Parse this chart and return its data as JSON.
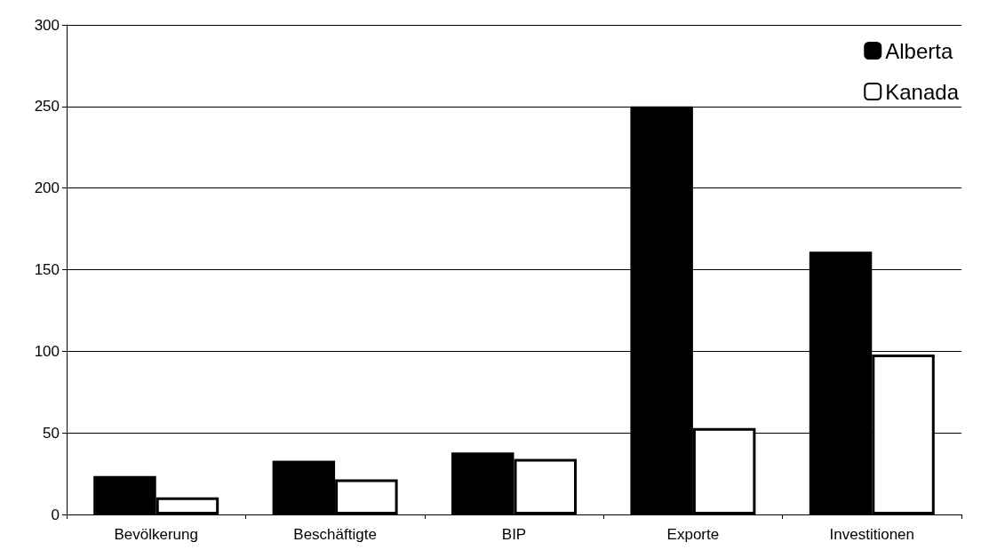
{
  "chart_data": {
    "type": "bar",
    "categories": [
      "Bevölkerung",
      "Beschäftigte",
      "BIP",
      "Exporte",
      "Investitionen"
    ],
    "series": [
      {
        "name": "Alberta",
        "color": "#000000",
        "values": [
          23.5,
          33,
          38,
          250,
          161
        ]
      },
      {
        "name": "Kanada",
        "color": "#ffffff",
        "values": [
          10.5,
          21.5,
          34,
          53,
          98
        ]
      }
    ],
    "ylim": [
      0,
      300
    ],
    "yticks": [
      0,
      50,
      100,
      150,
      200,
      250,
      300
    ],
    "grid": "y",
    "legend": "top right"
  }
}
